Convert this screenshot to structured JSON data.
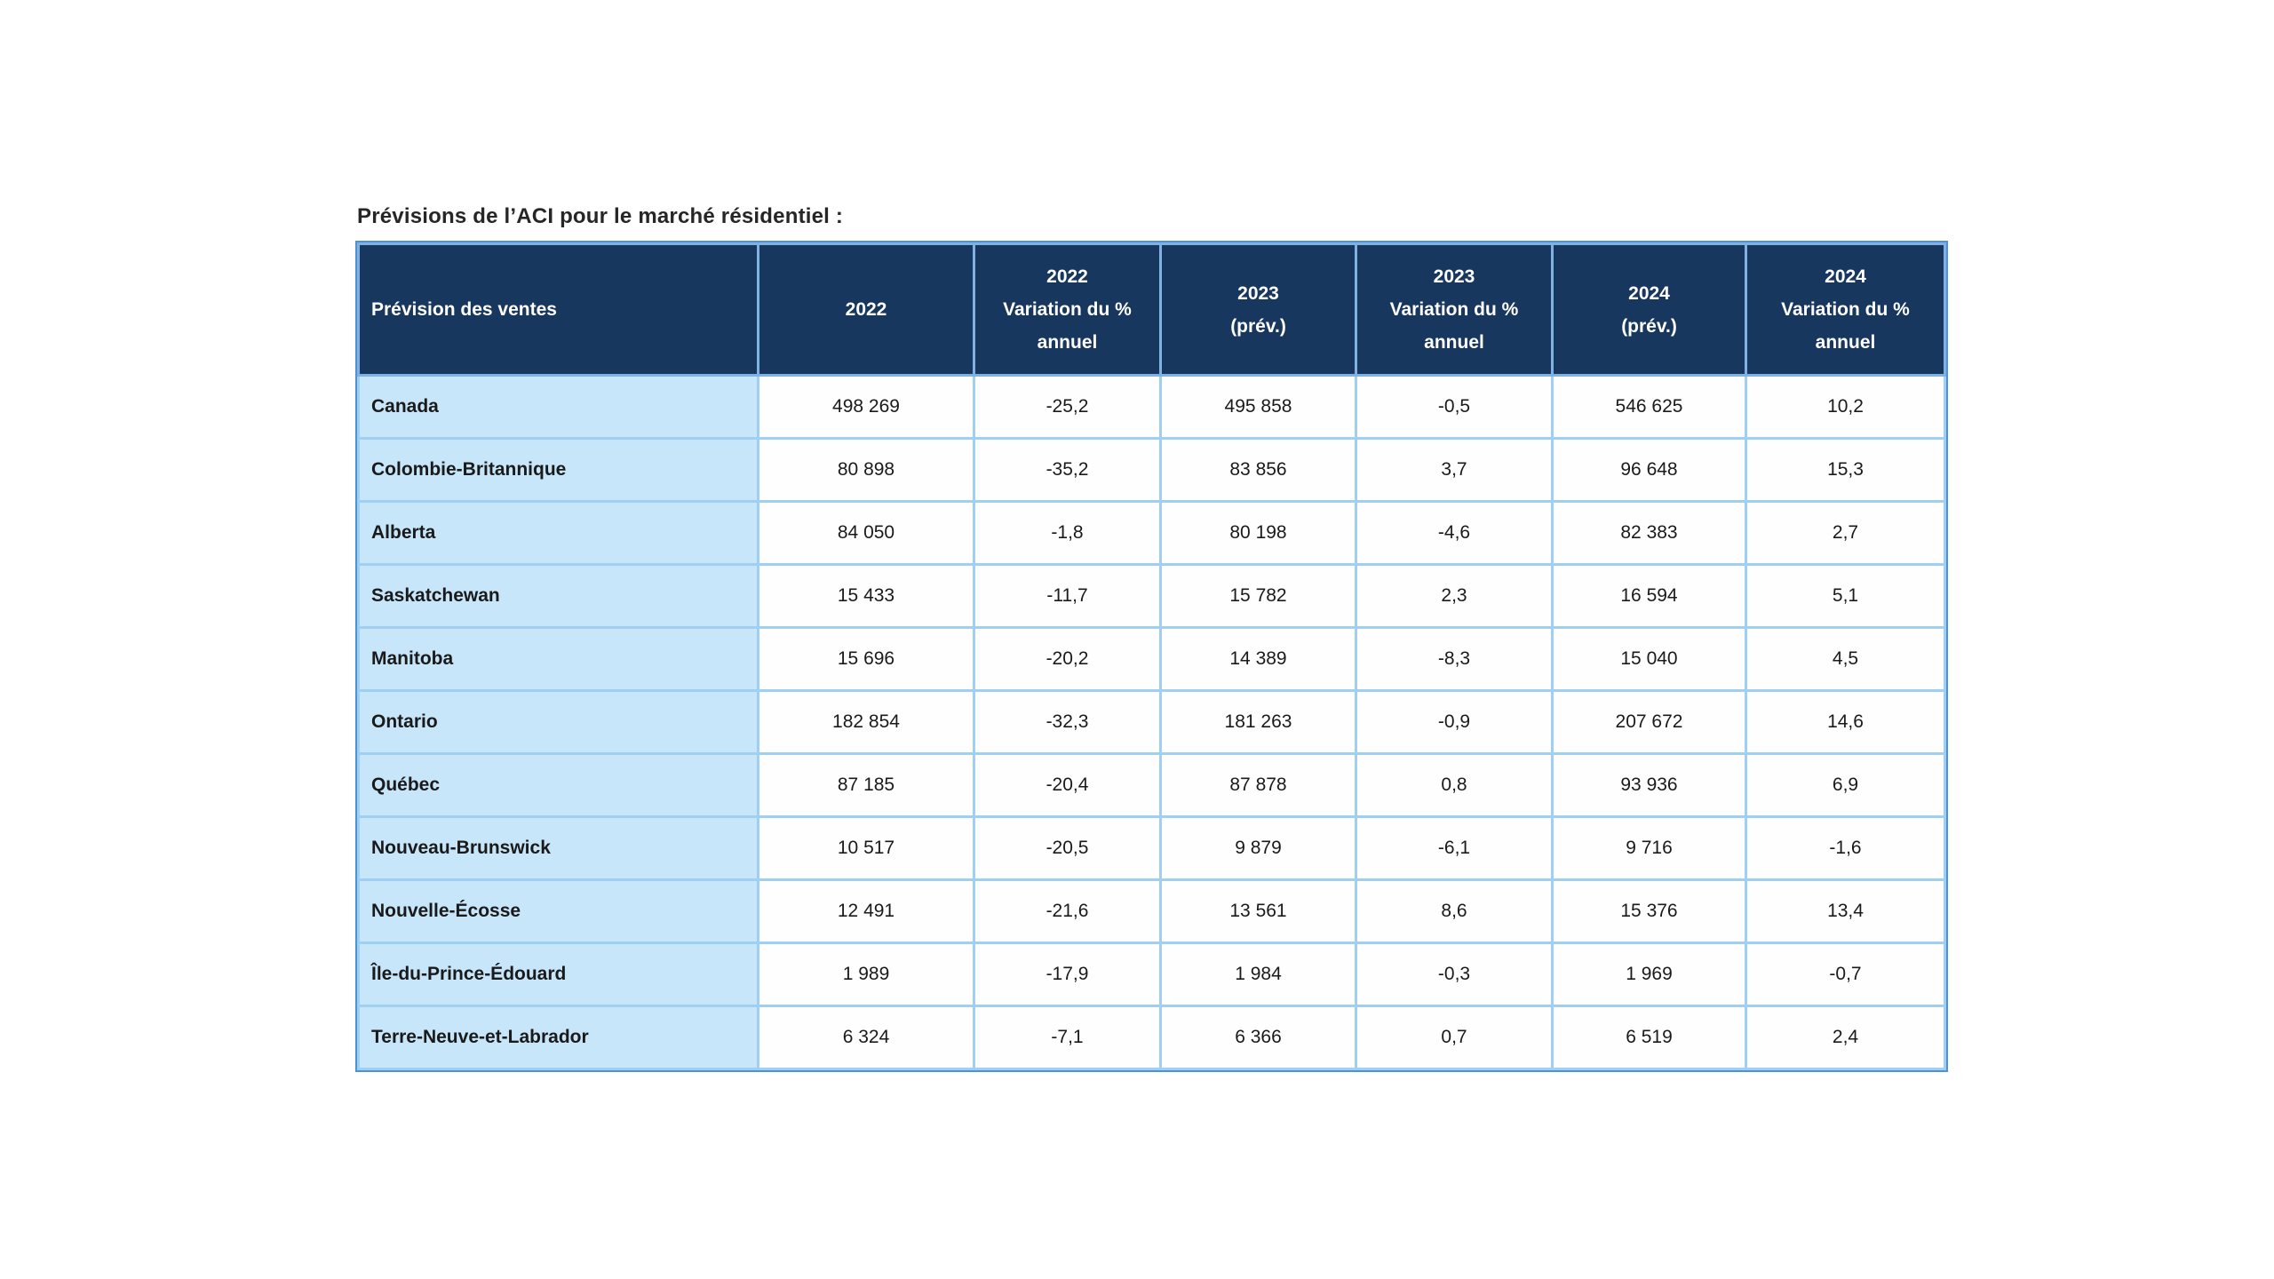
{
  "title": "Prévisions de l’ACI pour le marché résidentiel :",
  "colors": {
    "header_bg": "#17375e",
    "header_text": "#ffffff",
    "header_border": "#7fb2e2",
    "label_bg": "#c7e6fa",
    "cell_bg": "#fefefe",
    "grid_border": "#9fcff2",
    "outer_border": "#4f92d4",
    "text": "#1a1a1a",
    "title_text": "#262626"
  },
  "table": {
    "columns": [
      {
        "key": "sales-forecast",
        "align": "left",
        "lines": [
          "Prévision des ventes"
        ]
      },
      {
        "key": "y2022",
        "lines": [
          "2022"
        ]
      },
      {
        "key": "y2022-variation",
        "lines": [
          "2022",
          "Variation du %",
          "annuel"
        ]
      },
      {
        "key": "y2023-forecast",
        "lines": [
          "2023",
          "(prév.)"
        ]
      },
      {
        "key": "y2023-variation",
        "lines": [
          "2023",
          "Variation du %",
          "annuel"
        ]
      },
      {
        "key": "y2024-forecast",
        "lines": [
          "2024",
          "(prév.)"
        ]
      },
      {
        "key": "y2024-variation",
        "lines": [
          "2024",
          "Variation du %",
          "annuel"
        ]
      }
    ],
    "rows": [
      {
        "label": "Canada",
        "values": [
          "498 269",
          "-25,2",
          "495 858",
          "-0,5",
          "546 625",
          "10,2"
        ]
      },
      {
        "label": "Colombie-Britannique",
        "values": [
          "80 898",
          "-35,2",
          "83 856",
          "3,7",
          "96 648",
          "15,3"
        ]
      },
      {
        "label": "Alberta",
        "values": [
          "84 050",
          "-1,8",
          "80 198",
          "-4,6",
          "82 383",
          "2,7"
        ]
      },
      {
        "label": "Saskatchewan",
        "values": [
          "15 433",
          "-11,7",
          "15 782",
          "2,3",
          "16 594",
          "5,1"
        ]
      },
      {
        "label": "Manitoba",
        "values": [
          "15 696",
          "-20,2",
          "14 389",
          "-8,3",
          "15 040",
          "4,5"
        ]
      },
      {
        "label": "Ontario",
        "values": [
          "182 854",
          "-32,3",
          "181 263",
          "-0,9",
          "207 672",
          "14,6"
        ]
      },
      {
        "label": "Québec",
        "values": [
          "87 185",
          "-20,4",
          "87 878",
          "0,8",
          "93 936",
          "6,9"
        ]
      },
      {
        "label": "Nouveau-Brunswick",
        "values": [
          "10 517",
          "-20,5",
          "9 879",
          "-6,1",
          "9 716",
          "-1,6"
        ]
      },
      {
        "label": "Nouvelle-Écosse",
        "values": [
          "12 491",
          "-21,6",
          "13 561",
          "8,6",
          "15 376",
          "13,4"
        ]
      },
      {
        "label": "Île-du-Prince-Édouard",
        "values": [
          "1 989",
          "-17,9",
          "1 984",
          "-0,3",
          "1 969",
          "-0,7"
        ]
      },
      {
        "label": "Terre-Neuve-et-Labrador",
        "values": [
          "6 324",
          "-7,1",
          "6 366",
          "0,7",
          "6 519",
          "2,4"
        ]
      }
    ]
  }
}
